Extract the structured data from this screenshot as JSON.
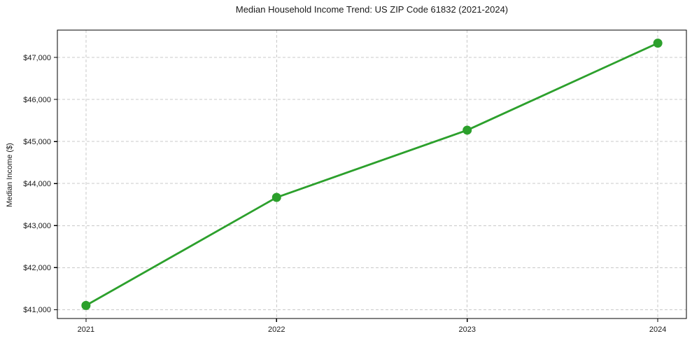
{
  "chart_data": {
    "type": "line",
    "title": "Median Household Income Trend: US ZIP Code 61832 (2021-2024)",
    "ylabel": "Median Income ($)",
    "xlabel": "",
    "x": [
      2021,
      2022,
      2023,
      2024
    ],
    "values": [
      41100,
      43670,
      45270,
      47340
    ],
    "xlim": [
      2020.85,
      2024.15
    ],
    "ylim": [
      40790,
      47650
    ],
    "xticks": {
      "values": [
        2021,
        2022,
        2023,
        2024
      ],
      "labels": [
        "2021",
        "2022",
        "2023",
        "2024"
      ]
    },
    "yticks": {
      "values": [
        41000,
        42000,
        43000,
        44000,
        45000,
        46000,
        47000
      ],
      "labels": [
        "$41,000",
        "$42,000",
        "$43,000",
        "$44,000",
        "$45,000",
        "$46,000",
        "$47,000"
      ]
    },
    "grid": true,
    "grid_style": "dashed",
    "legend": false,
    "marker": "circle",
    "colors": {
      "line": "#2ca02c",
      "marker": "#2ca02c",
      "grid": "#c9c9c9",
      "axis": "#000000",
      "text": "#1a1a1a",
      "background": "#ffffff"
    }
  }
}
